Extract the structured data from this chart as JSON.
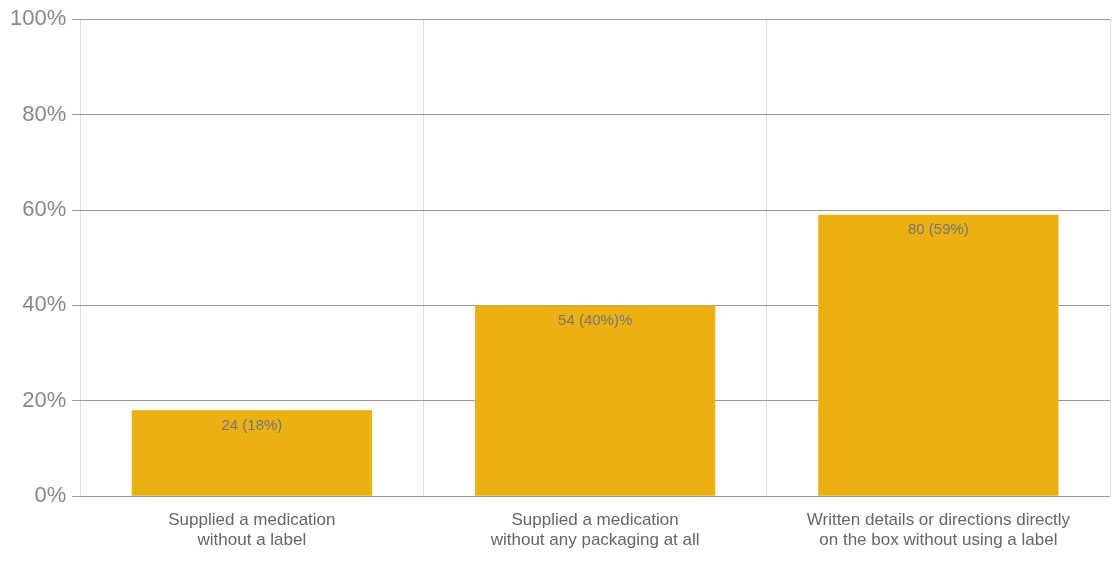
{
  "chart_data": {
    "type": "bar",
    "categories": [
      "Supplied a medication without a label",
      "Supplied a medication without any packaging at all",
      "Written details or directions directly on the box without using a label"
    ],
    "values": [
      18,
      40,
      59
    ],
    "value_labels": [
      "24 (18%)",
      "54 (40%)%",
      "80 (59%)"
    ],
    "color": "#ebb012",
    "ylim": [
      0,
      100
    ],
    "yticks": [
      {
        "value": 0,
        "label": "0%"
      },
      {
        "value": 20,
        "label": "20%"
      },
      {
        "value": 40,
        "label": "40%"
      },
      {
        "value": 60,
        "label": "60%"
      },
      {
        "value": 80,
        "label": "80%"
      },
      {
        "value": 100,
        "label": "100%"
      }
    ],
    "grid": true,
    "legend": false
  }
}
